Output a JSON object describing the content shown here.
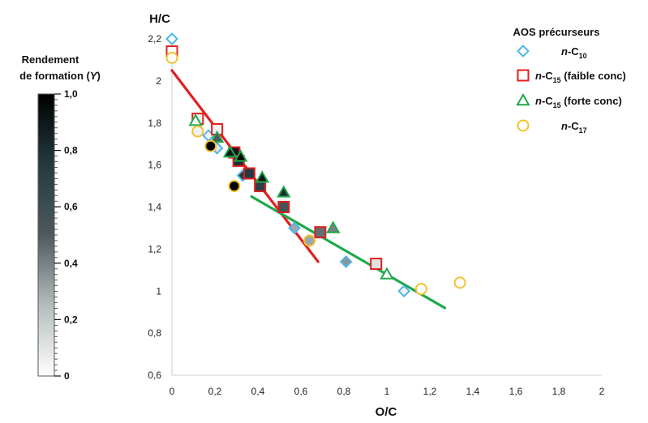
{
  "chart_data": {
    "type": "scatter",
    "xlabel": "O/C",
    "ylabel": "H/C",
    "xlim": [
      0,
      2
    ],
    "ylim": [
      0.6,
      2.2
    ],
    "x_ticks": [
      "0",
      "0,2",
      "0,4",
      "0,6",
      "0,8",
      "1",
      "1,2",
      "1,4",
      "1,6",
      "1,8",
      "2"
    ],
    "y_ticks": [
      "0,6",
      "0,8",
      "1",
      "1,2",
      "1,4",
      "1,6",
      "1,8",
      "2",
      "2,2"
    ],
    "grid": false,
    "legend": {
      "title": "AOS précurseurs",
      "position": "top-right",
      "entries": [
        {
          "series": "n-C10",
          "prefix": "n",
          "base": "-C",
          "sub": "10",
          "suffix": ""
        },
        {
          "series": "n-C15 (faible conc)",
          "prefix": "n",
          "base": "-C",
          "sub": "15",
          "suffix": " (faible conc)"
        },
        {
          "series": "n-C15 (forte conc)",
          "prefix": "n",
          "base": "-C",
          "sub": "15",
          "suffix": " (forte conc)"
        },
        {
          "series": "n-C17",
          "prefix": "n",
          "base": "-C",
          "sub": "17",
          "suffix": ""
        }
      ]
    },
    "colorbar": {
      "title_line1": "Rendement",
      "title_line2_prefix": "de formation (",
      "title_line2_italic": "Y",
      "title_line2_suffix": ")",
      "range": [
        0,
        1
      ],
      "tick_labels": [
        "0",
        "0,2",
        "0,4",
        "0,6",
        "0,8",
        "1,0"
      ],
      "gradient_colors": [
        "#ffffff",
        "#b5bcbd",
        "#4e5a5d",
        "#243a40",
        "#000000"
      ]
    },
    "series": [
      {
        "name": "n-C10",
        "marker": "diamond",
        "color": "#4fb6e8",
        "points": [
          {
            "x": 0.0,
            "y": 2.2,
            "fill": 0.0
          },
          {
            "x": 0.17,
            "y": 1.74,
            "fill": 0.05
          },
          {
            "x": 0.21,
            "y": 1.68,
            "fill": 0.1
          },
          {
            "x": 0.33,
            "y": 1.55,
            "fill": 0.75
          },
          {
            "x": 0.57,
            "y": 1.3,
            "fill": 0.3
          },
          {
            "x": 0.81,
            "y": 1.14,
            "fill": 0.35
          },
          {
            "x": 1.08,
            "y": 1.0,
            "fill": 0.05
          }
        ]
      },
      {
        "name": "n-C15 (faible conc)",
        "marker": "square",
        "color": "#e02020",
        "points": [
          {
            "x": 0.0,
            "y": 2.14,
            "fill": 0.0
          },
          {
            "x": 0.12,
            "y": 1.82,
            "fill": 0.05
          },
          {
            "x": 0.21,
            "y": 1.77,
            "fill": 0.05
          },
          {
            "x": 0.29,
            "y": 1.66,
            "fill": 0.9
          },
          {
            "x": 0.31,
            "y": 1.62,
            "fill": 0.8
          },
          {
            "x": 0.36,
            "y": 1.56,
            "fill": 0.75
          },
          {
            "x": 0.41,
            "y": 1.5,
            "fill": 0.7
          },
          {
            "x": 0.52,
            "y": 1.4,
            "fill": 0.55
          },
          {
            "x": 0.69,
            "y": 1.28,
            "fill": 0.45
          },
          {
            "x": 0.95,
            "y": 1.13,
            "fill": 0.1
          }
        ]
      },
      {
        "name": "n-C15 (forte conc)",
        "marker": "triangle",
        "color": "#1fa84b",
        "points": [
          {
            "x": 0.11,
            "y": 1.81,
            "fill": 0.0
          },
          {
            "x": 0.21,
            "y": 1.73,
            "fill": 0.5
          },
          {
            "x": 0.27,
            "y": 1.66,
            "fill": 0.9
          },
          {
            "x": 0.32,
            "y": 1.64,
            "fill": 1.0
          },
          {
            "x": 0.42,
            "y": 1.54,
            "fill": 0.9
          },
          {
            "x": 0.52,
            "y": 1.47,
            "fill": 0.8
          },
          {
            "x": 0.75,
            "y": 1.3,
            "fill": 0.4
          },
          {
            "x": 1.0,
            "y": 1.08,
            "fill": 0.0
          }
        ]
      },
      {
        "name": "n-C17",
        "marker": "circle",
        "color": "#f2c12e",
        "points": [
          {
            "x": 0.0,
            "y": 2.11,
            "fill": 0.0
          },
          {
            "x": 0.12,
            "y": 1.76,
            "fill": 0.05
          },
          {
            "x": 0.18,
            "y": 1.69,
            "fill": 1.0
          },
          {
            "x": 0.29,
            "y": 1.5,
            "fill": 1.0
          },
          {
            "x": 0.64,
            "y": 1.24,
            "fill": 0.3
          },
          {
            "x": 1.16,
            "y": 1.01,
            "fill": 0.0
          },
          {
            "x": 1.34,
            "y": 1.04,
            "fill": 0.0
          }
        ]
      }
    ],
    "trend_lines": [
      {
        "name": "red-trend",
        "color": "#e02020",
        "x": [
          0.0,
          0.68
        ],
        "y": [
          2.05,
          1.14
        ]
      },
      {
        "name": "green-trend",
        "color": "#1fa84b",
        "x": [
          0.37,
          1.27
        ],
        "y": [
          1.45,
          0.92
        ]
      }
    ]
  }
}
